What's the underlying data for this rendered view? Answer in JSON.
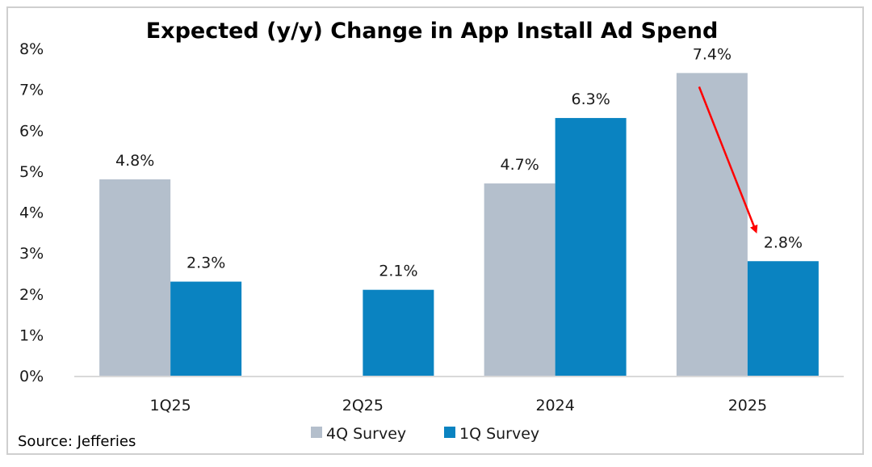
{
  "chart_data": {
    "type": "bar",
    "title": "Expected (y/y) Change in App Install Ad Spend",
    "xlabel": "",
    "ylabel": "",
    "ylim": [
      0,
      8
    ],
    "yticks": [
      "0%",
      "1%",
      "2%",
      "3%",
      "4%",
      "5%",
      "6%",
      "7%",
      "8%"
    ],
    "grid": false,
    "categories": [
      "1Q25",
      "2Q25",
      "2024",
      "2025"
    ],
    "series": [
      {
        "name": "4Q Survey",
        "color": "#b4bfcc",
        "values": [
          4.8,
          null,
          4.7,
          7.4
        ],
        "labels": [
          "4.8%",
          "",
          "4.7%",
          "7.4%"
        ]
      },
      {
        "name": "1Q Survey",
        "color": "#0a83c1",
        "values": [
          2.3,
          2.1,
          6.3,
          2.8
        ],
        "labels": [
          "2.3%",
          "2.1%",
          "6.3%",
          "2.8%"
        ]
      }
    ],
    "legend_position": "bottom",
    "annotation": {
      "type": "arrow",
      "color": "#ff0000",
      "from": {
        "category": "2025",
        "series": "4Q Survey"
      },
      "to": {
        "category": "2025",
        "series": "1Q Survey"
      }
    },
    "source": "Source: Jefferies"
  }
}
